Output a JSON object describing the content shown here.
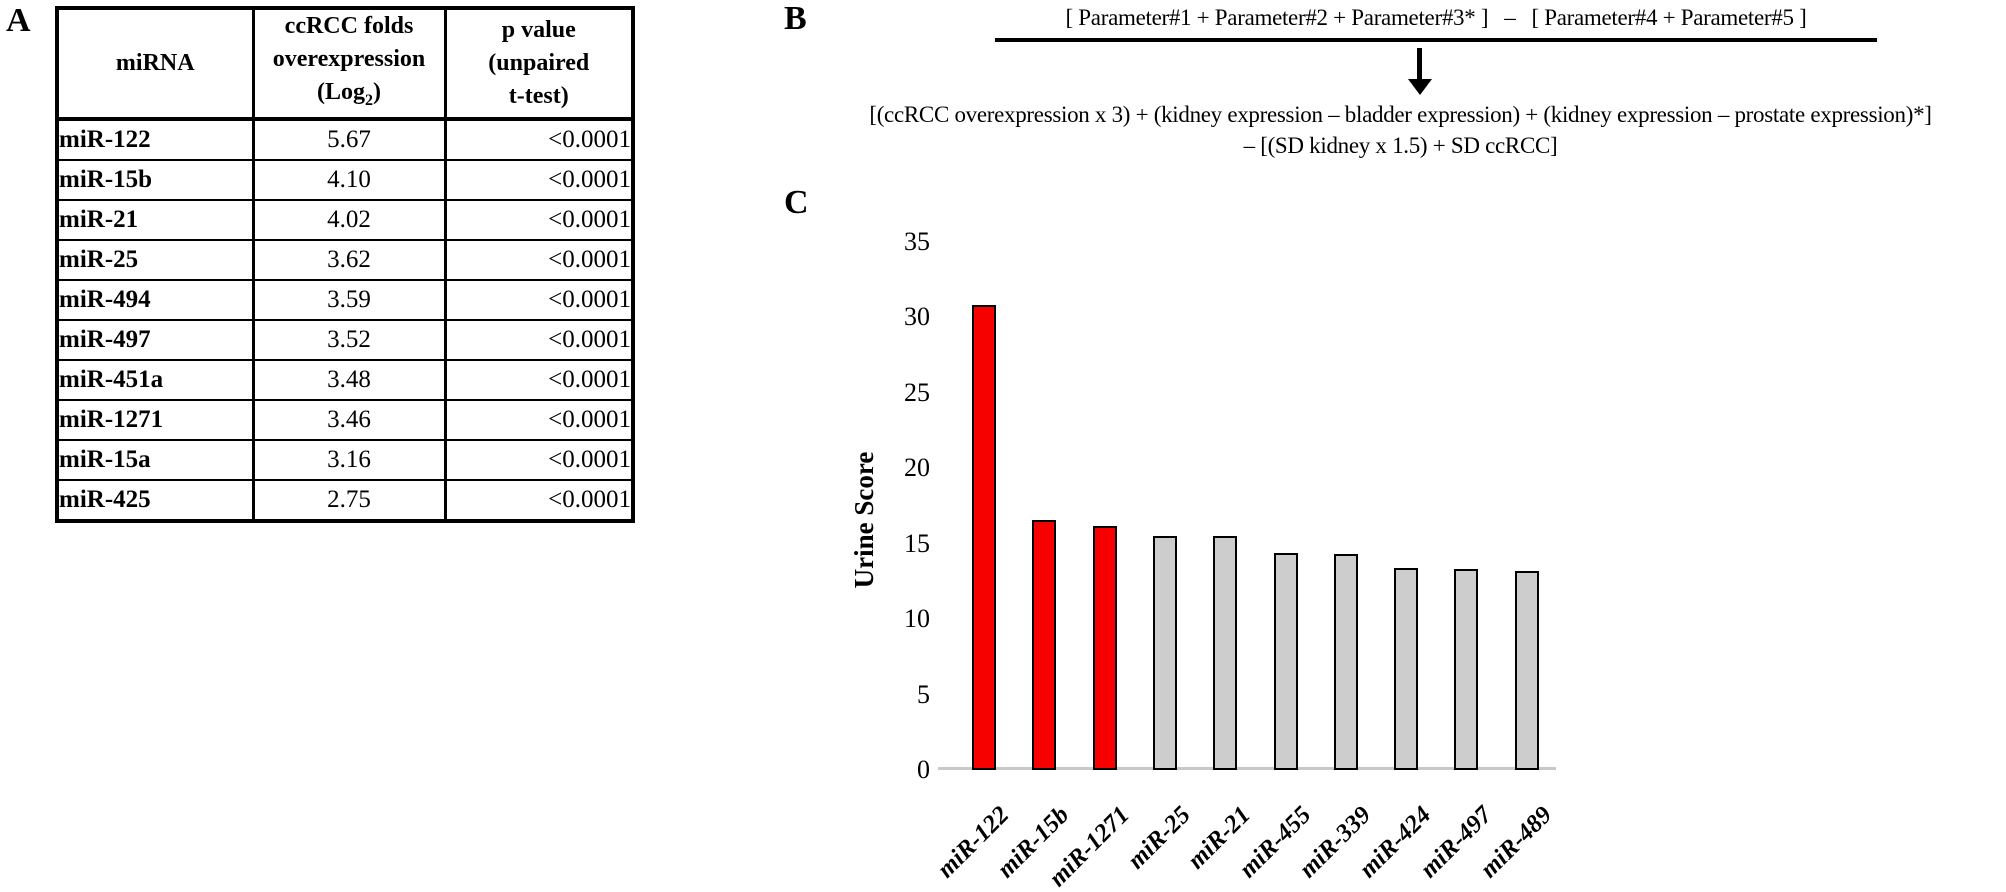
{
  "panels": {
    "a": {
      "label": "A",
      "table": {
        "headers": {
          "col1": "miRNA",
          "col2_line1": "ccRCC folds",
          "col2_line2": "overexpression",
          "col2_log_prefix": "(Log",
          "col2_log_sub": "2",
          "col2_log_suffix": ")",
          "col3_line1": "p value",
          "col3_line2": "(unpaired",
          "col3_line3": "t-test)"
        },
        "rows": [
          {
            "mirna": "miR-122",
            "fold": "5.67",
            "p": "<0.0001"
          },
          {
            "mirna": "miR-15b",
            "fold": "4.10",
            "p": "<0.0001"
          },
          {
            "mirna": "miR-21",
            "fold": "4.02",
            "p": "<0.0001"
          },
          {
            "mirna": "miR-25",
            "fold": "3.62",
            "p": "<0.0001"
          },
          {
            "mirna": "miR-494",
            "fold": "3.59",
            "p": "<0.0001"
          },
          {
            "mirna": "miR-497",
            "fold": "3.52",
            "p": "<0.0001"
          },
          {
            "mirna": "miR-451a",
            "fold": "3.48",
            "p": "<0.0001"
          },
          {
            "mirna": "miR-1271",
            "fold": "3.46",
            "p": "<0.0001"
          },
          {
            "mirna": "miR-15a",
            "fold": "3.16",
            "p": "<0.0001"
          },
          {
            "mirna": "miR-425",
            "fold": "2.75",
            "p": "<0.0001"
          }
        ]
      }
    },
    "b": {
      "label": "B",
      "formula_top": {
        "left": "[ Parameter#1 + Parameter#2 + Parameter#3* ]",
        "minus": "–",
        "right": "[ Parameter#4 + Parameter#5 ]"
      },
      "formula_expanded_line1": "[(ccRCC overexpression x 3) + (kidney expression – bladder expression) + (kidney expression – prostate expression)*]",
      "formula_expanded_line2": "– [(SD kidney x 1.5) + SD ccRCC]"
    },
    "c": {
      "label": "C"
    }
  },
  "chart_data": {
    "type": "bar",
    "title": "",
    "xlabel": "",
    "ylabel": "Urine Score",
    "ylim": [
      0,
      35
    ],
    "yticks": [
      0,
      5,
      10,
      15,
      20,
      25,
      30,
      35
    ],
    "grid": false,
    "legend_position": "none",
    "categories": [
      "miR-122",
      "miR-15b",
      "miR-1271",
      "miR-25",
      "miR-21",
      "miR-455",
      "miR-339",
      "miR-424",
      "miR-497",
      "miR-489"
    ],
    "values": [
      30.8,
      16.6,
      16.2,
      15.5,
      15.5,
      14.4,
      14.3,
      13.4,
      13.3,
      13.2
    ],
    "highlighted": [
      true,
      true,
      true,
      false,
      false,
      false,
      false,
      false,
      false,
      false
    ],
    "colors": {
      "highlight": "#f60000",
      "default": "#cdcdcd",
      "bar_border": "#000000",
      "axis_line": "#c8c8c8"
    }
  }
}
